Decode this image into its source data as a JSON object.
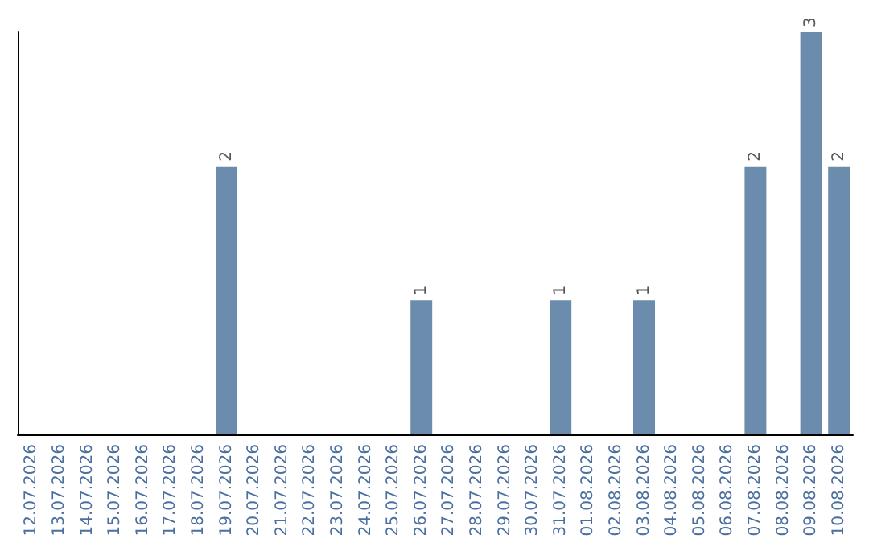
{
  "chart_data": {
    "type": "bar",
    "categories": [
      "12.07.2026",
      "13.07.2026",
      "14.07.2026",
      "15.07.2026",
      "16.07.2026",
      "17.07.2026",
      "18.07.2026",
      "19.07.2026",
      "20.07.2026",
      "21.07.2026",
      "22.07.2026",
      "23.07.2026",
      "24.07.2026",
      "25.07.2026",
      "26.07.2026",
      "27.07.2026",
      "28.07.2026",
      "29.07.2026",
      "30.07.2026",
      "31.07.2026",
      "01.08.2026",
      "02.08.2026",
      "03.08.2026",
      "04.08.2026",
      "05.08.2026",
      "06.08.2026",
      "07.08.2026",
      "08.08.2026",
      "09.08.2026",
      "10.08.2026"
    ],
    "values": [
      0,
      0,
      0,
      0,
      0,
      0,
      0,
      2,
      0,
      0,
      0,
      0,
      0,
      0,
      1,
      0,
      0,
      0,
      0,
      1,
      0,
      0,
      1,
      0,
      0,
      0,
      2,
      0,
      3,
      2
    ],
    "value_labels": [
      null,
      null,
      null,
      null,
      null,
      null,
      null,
      "2",
      null,
      null,
      null,
      null,
      null,
      null,
      "1",
      null,
      null,
      null,
      null,
      "1",
      null,
      null,
      "1",
      null,
      null,
      null,
      "2",
      null,
      "3",
      "2"
    ],
    "color": "#6b8cad",
    "tick_labels": "x"
  }
}
